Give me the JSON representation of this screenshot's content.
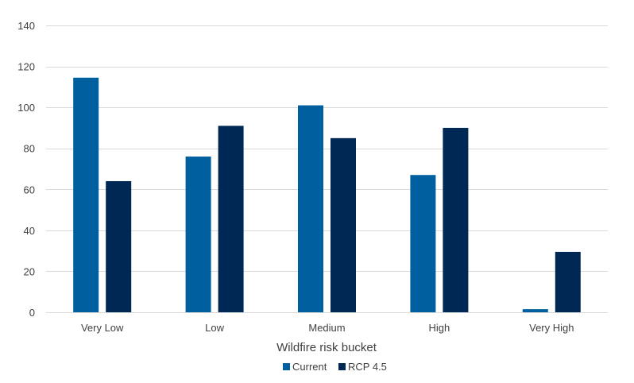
{
  "chart_data": {
    "type": "bar",
    "title": "",
    "xlabel": "Wildfire risk bucket",
    "ylabel": "",
    "categories": [
      "Very Low",
      "Low",
      "Medium",
      "High",
      "Very High"
    ],
    "series": [
      {
        "name": "Current",
        "color": "#005f9e",
        "values": [
          114.5,
          76,
          101,
          67,
          1.5
        ]
      },
      {
        "name": "RCP 4.5",
        "color": "#002855",
        "values": [
          64,
          91,
          85,
          90,
          29.5
        ]
      }
    ],
    "ylim": [
      0,
      140
    ],
    "yticks": [
      0,
      20,
      40,
      60,
      80,
      100,
      120,
      140
    ],
    "grid": true,
    "legend_position": "bottom-center",
    "colors": {
      "gridline": "#d9d9d9",
      "text": "#404040"
    }
  }
}
